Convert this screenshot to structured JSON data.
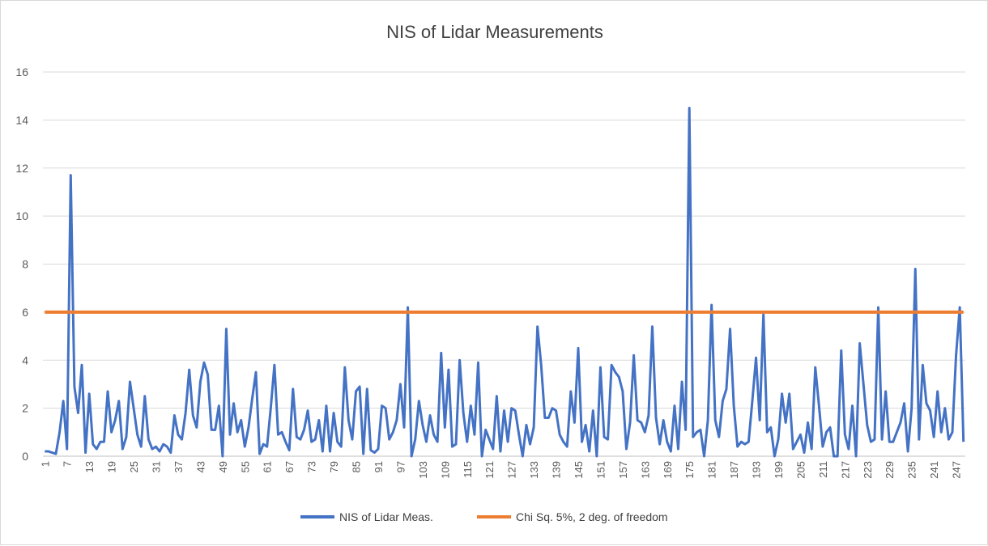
{
  "chart_data": {
    "type": "line",
    "title": "NIS of Lidar Measurements",
    "xlabel": "",
    "ylabel": "",
    "ylim": [
      0,
      16
    ],
    "y_ticks": [
      0,
      2,
      4,
      6,
      8,
      10,
      12,
      14,
      16
    ],
    "x_count": 249,
    "x_tick_labels": [
      1,
      7,
      13,
      19,
      25,
      31,
      37,
      43,
      49,
      55,
      61,
      67,
      73,
      79,
      85,
      91,
      97,
      103,
      109,
      115,
      121,
      127,
      133,
      139,
      145,
      151,
      157,
      163,
      169,
      175,
      181,
      187,
      193,
      199,
      205,
      211,
      217,
      223,
      229,
      235,
      241,
      247
    ],
    "grid": true,
    "legend": "bottom",
    "series": [
      {
        "name": "NIS of Lidar Meas.",
        "color": "#4472C4",
        "values": [
          0.2,
          0.2,
          0.15,
          0.1,
          1.0,
          2.3,
          0.3,
          11.7,
          2.9,
          1.8,
          3.8,
          0.15,
          2.6,
          0.5,
          0.3,
          0.6,
          0.6,
          2.7,
          1.0,
          1.5,
          2.3,
          0.3,
          0.8,
          3.1,
          2.0,
          0.9,
          0.4,
          2.5,
          0.7,
          0.3,
          0.4,
          0.2,
          0.5,
          0.4,
          0.15,
          1.7,
          0.9,
          0.7,
          1.8,
          3.6,
          1.7,
          1.2,
          3.1,
          3.9,
          3.4,
          1.1,
          1.1,
          2.1,
          0.0,
          5.3,
          0.9,
          2.2,
          1.0,
          1.5,
          0.4,
          1.2,
          2.4,
          3.5,
          0.1,
          0.5,
          0.4,
          2.0,
          3.8,
          0.9,
          1.0,
          0.6,
          0.25,
          2.8,
          0.8,
          0.7,
          1.1,
          1.9,
          0.6,
          0.7,
          1.5,
          0.2,
          2.1,
          0.2,
          1.8,
          0.6,
          0.4,
          3.7,
          1.5,
          0.7,
          2.7,
          2.9,
          0.1,
          2.8,
          0.25,
          0.15,
          0.3,
          2.1,
          2.0,
          0.7,
          1.0,
          1.5,
          3.0,
          1.2,
          6.2,
          0.0,
          0.7,
          2.3,
          1.3,
          0.6,
          1.7,
          0.9,
          0.6,
          4.3,
          1.2,
          3.6,
          0.4,
          0.5,
          4.0,
          1.8,
          0.6,
          2.1,
          0.9,
          3.9,
          0.0,
          1.1,
          0.7,
          0.3,
          2.5,
          0.2,
          1.9,
          0.6,
          2.0,
          1.9,
          0.9,
          0.0,
          1.3,
          0.5,
          1.2,
          5.4,
          3.8,
          1.6,
          1.6,
          2.0,
          1.9,
          0.9,
          0.6,
          0.4,
          2.7,
          1.4,
          4.5,
          0.6,
          1.3,
          0.2,
          1.9,
          0.0,
          3.7,
          0.8,
          0.7,
          3.8,
          3.5,
          3.3,
          2.7,
          0.3,
          1.4,
          4.2,
          1.5,
          1.4,
          1.0,
          1.7,
          5.4,
          1.6,
          0.5,
          1.5,
          0.6,
          0.2,
          2.1,
          0.3,
          3.1,
          1.1,
          14.5,
          0.8,
          1.0,
          1.1,
          0.0,
          1.5,
          6.3,
          1.5,
          0.8,
          2.3,
          2.8,
          5.3,
          2.1,
          0.4,
          0.6,
          0.5,
          0.6,
          2.3,
          4.1,
          1.5,
          5.9,
          1.0,
          1.2,
          0.0,
          0.7,
          2.6,
          1.4,
          2.6,
          0.3,
          0.6,
          0.9,
          0.15,
          1.4,
          0.3,
          3.7,
          2.1,
          0.4,
          1.0,
          1.2,
          0.0,
          0.0,
          4.4,
          0.9,
          0.3,
          2.1,
          0.0,
          4.7,
          3.0,
          1.3,
          0.6,
          0.7,
          6.2,
          0.7,
          2.7,
          0.6,
          0.6,
          1.0,
          1.4,
          2.2,
          0.2,
          2.0,
          7.8,
          0.7,
          3.8,
          2.2,
          1.9,
          0.8,
          2.7,
          1.0,
          2.0,
          0.7,
          1.0,
          4.2,
          6.2,
          0.6
        ]
      },
      {
        "name": "Chi Sq. 5%, 2 deg. of freedom",
        "color": "#ED7D31",
        "values": "constant",
        "constant_value": 6.0
      }
    ]
  }
}
